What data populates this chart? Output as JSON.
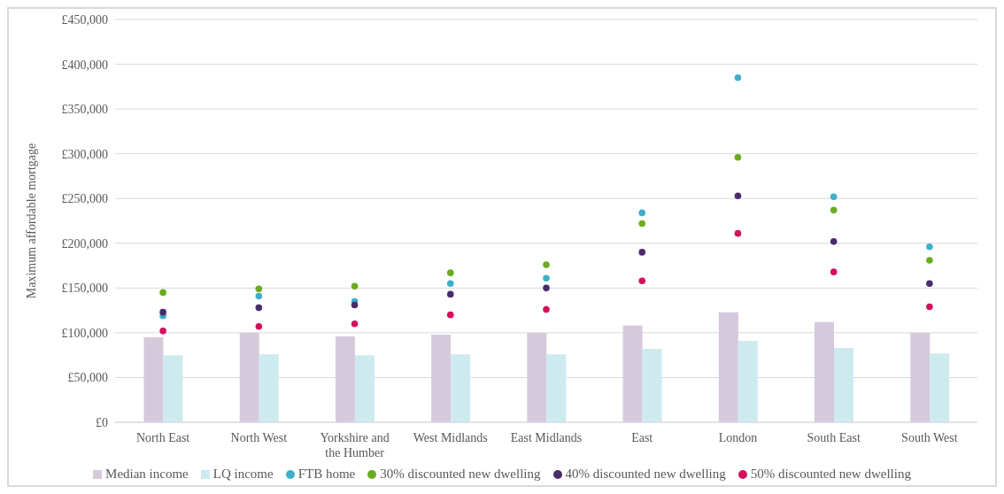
{
  "chart_data": {
    "type": "bar",
    "ylabel": "Maximum affordable mortgage",
    "categories": [
      "North East",
      "North West",
      "Yorkshire and the Humber",
      "West Midlands",
      "East Midlands",
      "East",
      "London",
      "South East",
      "South West"
    ],
    "series": [
      {
        "name": "Median income",
        "color": "#d5cadb",
        "values": [
          95000,
          100000,
          96000,
          98000,
          100000,
          108000,
          123000,
          112000,
          100000
        ]
      },
      {
        "name": "LQ income",
        "color": "#cdebef",
        "values": [
          75000,
          76000,
          75000,
          76000,
          76000,
          82000,
          91000,
          83000,
          77000
        ]
      },
      {
        "name": "FTB home",
        "type": "scatter",
        "color": "#3fafc9",
        "values": [
          119000,
          141000,
          135000,
          155000,
          161000,
          234000,
          385000,
          252000,
          196000
        ]
      },
      {
        "name": "30% discounted new dwelling",
        "type": "scatter",
        "color": "#6aab1f",
        "values": [
          145000,
          149000,
          152000,
          167000,
          176000,
          222000,
          296000,
          237000,
          181000
        ]
      },
      {
        "name": "40% discounted new dwelling",
        "type": "scatter",
        "color": "#4a2b6b",
        "values": [
          123000,
          128000,
          131000,
          143000,
          150000,
          190000,
          253000,
          202000,
          155000
        ]
      },
      {
        "name": "50% discounted new dwelling",
        "type": "scatter",
        "color": "#d4105e",
        "values": [
          102000,
          107000,
          110000,
          120000,
          126000,
          158000,
          211000,
          168000,
          129000
        ]
      }
    ],
    "ylim": [
      0,
      450000
    ],
    "yticks": [
      {
        "value": 0,
        "label": "£0"
      },
      {
        "value": 50000,
        "label": "£50,000"
      },
      {
        "value": 100000,
        "label": "£100,000"
      },
      {
        "value": 150000,
        "label": "£150,000"
      },
      {
        "value": 200000,
        "label": "£200,000"
      },
      {
        "value": 250000,
        "label": "£250,000"
      },
      {
        "value": 300000,
        "label": "£300,000"
      },
      {
        "value": 350000,
        "label": "£350,000"
      },
      {
        "value": 400000,
        "label": "£400,000"
      },
      {
        "value": 450000,
        "label": "£450,000"
      }
    ],
    "grid": "y",
    "legend": "bottom",
    "marker": "circle"
  }
}
